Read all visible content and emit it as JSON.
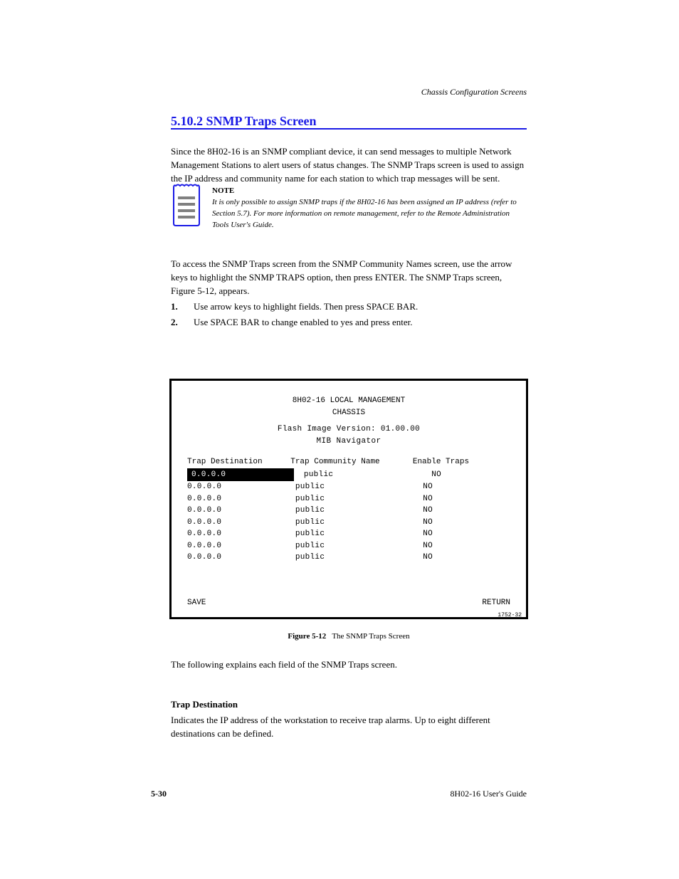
{
  "header": {
    "right": "Chassis Configuration Screens"
  },
  "section": {
    "title": "5.10.2  SNMP Traps Screen",
    "intro": "Since the 8H02-16 is an SNMP compliant device, it can send messages to multiple Network Management Stations to alert users of status changes. The SNMP Traps screen is used to assign the IP address and community name for each station to which trap messages will be sent.",
    "note_label": "NOTE",
    "note_body": "It is only possible to assign SNMP traps if the 8H02-16 has been assigned an IP address (refer to Section 5.7). For more information on remote management, refer to the Remote Administration Tools User's Guide.",
    "instr": "To access the SNMP Traps screen from the SNMP Community Names screen, use the arrow keys to highlight the SNMP TRAPS option, then press ENTER. The SNMP Traps screen, Figure 5-12, appears.",
    "step1": "Use arrow keys to highlight fields. Then press SPACE BAR.",
    "step2": "Use SPACE BAR to change enabled to yes and press enter."
  },
  "terminal": {
    "title": "8H02-16 LOCAL MANAGEMENT",
    "subtitle": "CHASSIS",
    "addr": "Flash Image Version: 01.00.00",
    "mib": "MIB Navigator",
    "headers": [
      "Trap Destination",
      "Trap Community Name",
      "Enable Traps"
    ],
    "rows": [
      {
        "ip": "0.0.0.0",
        "name": "public",
        "enable": "NO",
        "selected": true
      },
      {
        "ip": "0.0.0.0",
        "name": "public",
        "enable": "NO",
        "selected": false
      },
      {
        "ip": "0.0.0.0",
        "name": "public",
        "enable": "NO",
        "selected": false
      },
      {
        "ip": "0.0.0.0",
        "name": "public",
        "enable": "NO",
        "selected": false
      },
      {
        "ip": "0.0.0.0",
        "name": "public",
        "enable": "NO",
        "selected": false
      },
      {
        "ip": "0.0.0.0",
        "name": "public",
        "enable": "NO",
        "selected": false
      },
      {
        "ip": "0.0.0.0",
        "name": "public",
        "enable": "NO",
        "selected": false
      },
      {
        "ip": "0.0.0.0",
        "name": "public",
        "enable": "NO",
        "selected": false
      }
    ],
    "foot": [
      "SAVE",
      "RETURN"
    ],
    "panel_code": "1752-32"
  },
  "figure": {
    "no": "Figure 5-12",
    "caption": "The SNMP Traps Screen"
  },
  "desc": "The following explains each field of the SNMP Traps screen.",
  "field": {
    "name": "Trap Destination",
    "body": "Indicates the IP address of the workstation to receive trap alarms. Up to eight different destinations can be defined."
  },
  "footer": {
    "page": "5-30",
    "doc": "8H02-16 User's Guide"
  },
  "colors": {
    "rule": "#1a1ae6",
    "title": "#1a1ae6",
    "note_border": "#1a1ae6",
    "terminal_border": "#000000",
    "highlight_bg": "#000000",
    "highlight_fg": "#ffffff"
  }
}
